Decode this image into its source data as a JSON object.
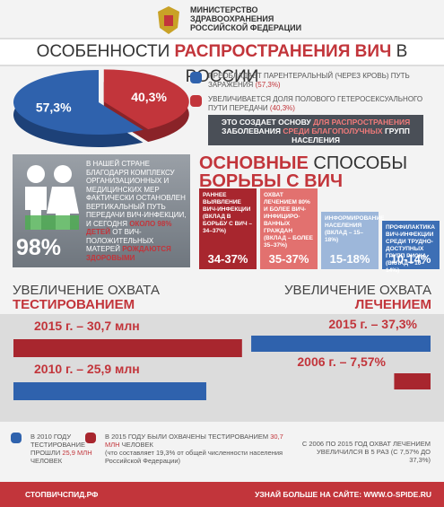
{
  "header": {
    "ministry": [
      "МИНИСТЕРСТВО",
      "ЗДРАВООХРАНЕНИЯ",
      "РОССИЙСКОЙ ФЕДЕРАЦИИ"
    ]
  },
  "title": {
    "before": "ОСОБЕННОСТИ",
    "highlight": "РАСПРОСТРАНЕНИЯ ВИЧ",
    "after": "В РОССИИ"
  },
  "pie": {
    "slices": [
      {
        "value": 57.3,
        "label": "57,3%",
        "color": "#2f62ad"
      },
      {
        "value": 40.3,
        "label": "40,3%",
        "color": "#c2353b"
      }
    ]
  },
  "legend": [
    {
      "text": "ПРЕОБЛАДАЕТ ПАРЕНТЕРАЛЬНЫЙ (ЧЕРЕЗ КРОВЬ) ПУТЬ ЗАРАЖЕНИЯ",
      "note": "(57,3%)"
    },
    {
      "text": "УВЕЛИЧИВАЕТСЯ ДОЛЯ ПОЛОВОГО ГЕТЕРОСЕКСУАЛЬНОГО ПУТИ ПЕРЕДАЧИ",
      "note": "(40,3%)"
    }
  ],
  "basis": {
    "before": "ЭТО СОЗДАЕТ ОСНОВУ",
    "highlight1": "ДЛЯ РАСПРОСТРАНЕНИЯ",
    "middle": "ЗАБОЛЕВАНИЯ",
    "highlight2": "СРЕДИ БЛАГОПОЛУЧНЫХ",
    "after": "ГРУПП НАСЕЛЕНИЯ"
  },
  "children": {
    "big": "98%",
    "text": "В НАШЕЙ СТРАНЕ БЛАГОДАРЯ КОМПЛЕКСУ ОРГАНИЗАЦИОННЫХ И МЕДИЦИНСКИХ МЕР ФАКТИЧЕСКИ ОСТАНОВЛЕН ВЕРТИКАЛЬНЫЙ ПУТЬ ПЕРЕДАЧИ ВИЧ-ИНФЕКЦИИ, И СЕГОДНЯ",
    "highlight1": "ОКОЛО 98% ДЕТЕЙ",
    "middle": "ОТ ВИЧ-ПОЛОЖИТЕЛЬНЫХ МАТЕРЕЙ",
    "highlight2": "РОЖДАЮТСЯ ЗДОРОВЫМИ"
  },
  "methods": {
    "title1": "ОСНОВНЫЕ",
    "title2": "СПОСОБЫ",
    "title3": "БОРЬБЫ С ВИЧ",
    "columns": [
      {
        "text": "РАННЕЕ ВЫЯВЛЕНИЕ ВИЧ-ИНФЕКЦИИ (ВКЛАД В БОРЬБУ С ВИЧ – 34–37%)",
        "range": "34-37%",
        "color": "#a8262e"
      },
      {
        "text": "ОХВАТ ЛЕЧЕНИЕМ 80% И БОЛЕЕ ВИЧ-ИНФИЦИРО-ВАННЫХ ГРАЖДАН (ВКЛАД – БОЛЕЕ 35–37%)",
        "range": "35-37%",
        "color": "#e2716f"
      },
      {
        "text": "ИНФОРМИРОВАНИЕ НАСЕЛЕНИЯ (ВКЛАД – 15–18%)",
        "range": "15-18%",
        "color": "#9db7da"
      },
      {
        "text": "ПРОФИЛАКТИКА ВИЧ-ИНФЕКЦИИ СРЕДИ ТРУДНО-ДОСТУПНЫХ ГРУПП РИСКА (ВКЛАД – 10–14%)",
        "range": "10-14%",
        "color": "#3d6fb5"
      }
    ]
  },
  "testing": {
    "heading1": "УВЕЛИЧЕНИЕ ОХВАТА",
    "heading2": "ТЕСТИРОВАНИЕМ",
    "bars": [
      {
        "label": "2015 г. – 30,7 млн",
        "value": 30.7,
        "color": "#a8262e"
      },
      {
        "label": "2010 г. – 25,9 млн",
        "value": 25.9,
        "color": "#2f62ad"
      }
    ]
  },
  "treatment": {
    "heading1": "УВЕЛИЧЕНИЕ ОХВАТА",
    "heading2": "ЛЕЧЕНИЕМ",
    "bars": [
      {
        "label": "2015 г. – 37,3%",
        "value": 37.3,
        "color": "#2f62ad"
      },
      {
        "label": "2006 г. – 7,57%",
        "value": 7.57,
        "color": "#a8262e"
      }
    ]
  },
  "notes": {
    "n2010": {
      "before": "В 2010 ГОДУ ТЕСТИРОВАНИЕ ПРОШЛИ",
      "highlight": "25,9 МЛН",
      "after": "ЧЕЛОВЕК"
    },
    "n2015": {
      "before": "В 2015 ГОДУ БЫЛИ ОХВАЧЕНЫ ТЕСТИРОВАНИЕМ",
      "highlight": "30,7 МЛН",
      "after": "ЧЕЛОВЕК",
      "small": "(что составляет 19,3% от общей численности населения Российской Федерации)"
    },
    "treatment": "С 2006 ПО 2015 ГОД ОХВАТ ЛЕЧЕНИЕМ УВЕЛИЧИЛСЯ В 5 РАЗ (С 7,57% ДО 37,3%)"
  },
  "footer": {
    "site": "СТОПВИЧСПИД.РФ",
    "more": "УЗНАЙ БОЛЬШЕ НА САЙТЕ: WWW.O-SPIDE.RU"
  }
}
